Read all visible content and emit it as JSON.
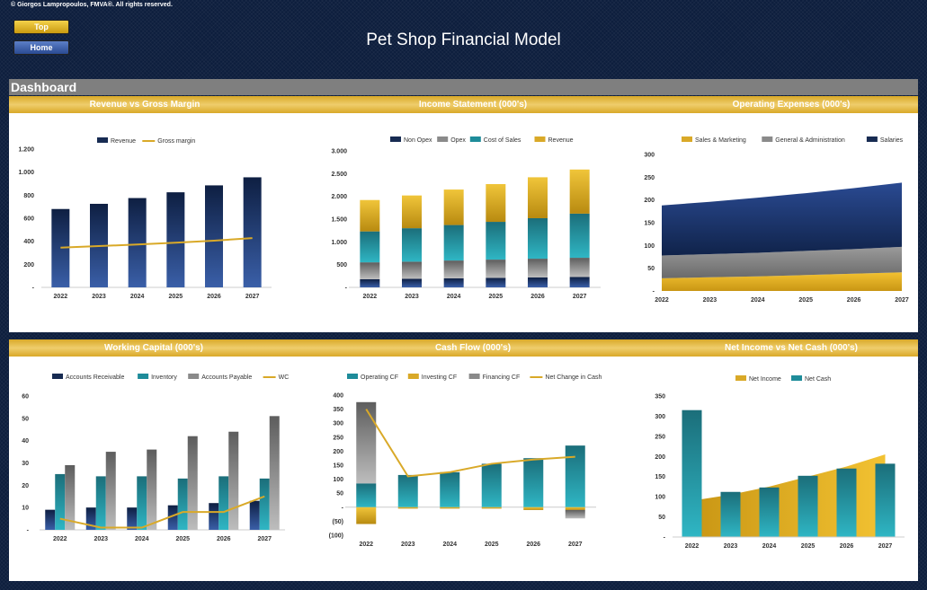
{
  "copyright": "© Giorgos Lampropoulos, FMVA®. All rights reserved.",
  "nav": {
    "top_label": "Top",
    "home_label": "Home"
  },
  "page_title": "Pet Shop Financial Model",
  "dashboard_label": "Dashboard",
  "panel_titles": {
    "revenue": "Revenue vs Gross Margin",
    "income": "Income Statement (000's)",
    "opex": "Operating Expenses (000's)",
    "wc": "Working Capital (000's)",
    "cashflow": "Cash Flow (000's)",
    "netincome": "Net Income vs Net Cash (000's)"
  },
  "colors": {
    "navy": "#172b52",
    "gold": "#d9a928",
    "teal": "#1e8c9a",
    "gray": "#8a8a8a"
  },
  "chart_data": [
    {
      "id": "revenue",
      "type": "bar",
      "categories": [
        "2022",
        "2023",
        "2024",
        "2025",
        "2026",
        "2027"
      ],
      "series": [
        {
          "name": "Revenue",
          "kind": "bar",
          "values": [
            680,
            725,
            775,
            825,
            885,
            955
          ]
        },
        {
          "name": "Gross margin",
          "kind": "line",
          "values": [
            345,
            358,
            372,
            388,
            405,
            428
          ]
        }
      ],
      "ylim": [
        0,
        1200
      ],
      "yticks": [
        "-",
        "200",
        "400",
        "600",
        "800",
        "1.000",
        "1.200"
      ],
      "legend": "top"
    },
    {
      "id": "income",
      "type": "bar",
      "stacked": true,
      "categories": [
        "2022",
        "2023",
        "2024",
        "2025",
        "2026",
        "2027"
      ],
      "series": [
        {
          "name": "Non Opex",
          "values": [
            180,
            190,
            200,
            210,
            220,
            230
          ]
        },
        {
          "name": "Opex",
          "values": [
            370,
            375,
            390,
            400,
            410,
            420
          ]
        },
        {
          "name": "Cost of Sales",
          "values": [
            680,
            735,
            780,
            830,
            890,
            970
          ]
        },
        {
          "name": "Revenue",
          "values": [
            690,
            720,
            780,
            830,
            900,
            970
          ]
        }
      ],
      "ylim": [
        0,
        3000
      ],
      "yticks": [
        "-",
        "500",
        "1.000",
        "1.500",
        "2.000",
        "2.500",
        "3.000"
      ],
      "legend": "top"
    },
    {
      "id": "opex",
      "type": "area",
      "stacked": true,
      "categories": [
        "2022",
        "2023",
        "2024",
        "2025",
        "2026",
        "2027"
      ],
      "series": [
        {
          "name": "Sales & Marketing",
          "values": [
            28,
            30,
            32,
            35,
            38,
            41
          ]
        },
        {
          "name": "General & Administration",
          "values": [
            50,
            51,
            52,
            53,
            54,
            56
          ]
        },
        {
          "name": "Salaries",
          "values": [
            110,
            115,
            121,
            127,
            134,
            141
          ]
        }
      ],
      "ylim": [
        0,
        300
      ],
      "yticks": [
        "-",
        "50",
        "100",
        "150",
        "200",
        "250",
        "300"
      ],
      "legend": "top"
    },
    {
      "id": "wc",
      "type": "bar",
      "categories": [
        "2022",
        "2023",
        "2024",
        "2025",
        "2026",
        "2027"
      ],
      "series": [
        {
          "name": "Accounts Receivable",
          "kind": "bar",
          "values": [
            9,
            10,
            10,
            11,
            12,
            13
          ]
        },
        {
          "name": "Inventory",
          "kind": "bar",
          "values": [
            25,
            24,
            24,
            23,
            24,
            23
          ]
        },
        {
          "name": "Accounts Payable",
          "kind": "bar",
          "values": [
            29,
            35,
            36,
            42,
            44,
            51
          ]
        },
        {
          "name": "WC",
          "kind": "line",
          "values": [
            5,
            1,
            1,
            8,
            8,
            15
          ]
        }
      ],
      "ylim": [
        0,
        60
      ],
      "yticks": [
        "-",
        "10",
        "20",
        "30",
        "40",
        "50",
        "60"
      ],
      "legend": "top"
    },
    {
      "id": "cashflow",
      "type": "bar",
      "stacked": true,
      "categories": [
        "2022",
        "2023",
        "2024",
        "2025",
        "2026",
        "2027"
      ],
      "series": [
        {
          "name": "Operating CF",
          "kind": "bar",
          "values": [
            85,
            115,
            125,
            155,
            175,
            220
          ]
        },
        {
          "name": "Investing CF",
          "kind": "bar",
          "values": [
            -60,
            -5,
            -5,
            -5,
            -10,
            -10
          ]
        },
        {
          "name": "Financing CF",
          "kind": "bar",
          "values": [
            290,
            0,
            0,
            0,
            0,
            -30
          ]
        },
        {
          "name": "Net Change in Cash",
          "kind": "line",
          "values": [
            350,
            110,
            125,
            155,
            170,
            180
          ]
        }
      ],
      "ylim": [
        -100,
        400
      ],
      "yticks": [
        "(100)",
        "(50)",
        "-",
        "50",
        "100",
        "150",
        "200",
        "250",
        "300",
        "350",
        "400"
      ],
      "legend": "top"
    },
    {
      "id": "netincome",
      "type": "bar",
      "categories": [
        "2022",
        "2023",
        "2024",
        "2025",
        "2026",
        "2027"
      ],
      "series": [
        {
          "name": "Net Income",
          "kind": "area",
          "values": [
            90,
            105,
            125,
            150,
            175,
            205
          ]
        },
        {
          "name": "Net Cash",
          "kind": "bar",
          "values": [
            315,
            112,
            123,
            152,
            170,
            182
          ]
        }
      ],
      "ylim": [
        0,
        350
      ],
      "yticks": [
        "-",
        "50",
        "100",
        "150",
        "200",
        "250",
        "300",
        "350"
      ],
      "legend": "top"
    }
  ]
}
